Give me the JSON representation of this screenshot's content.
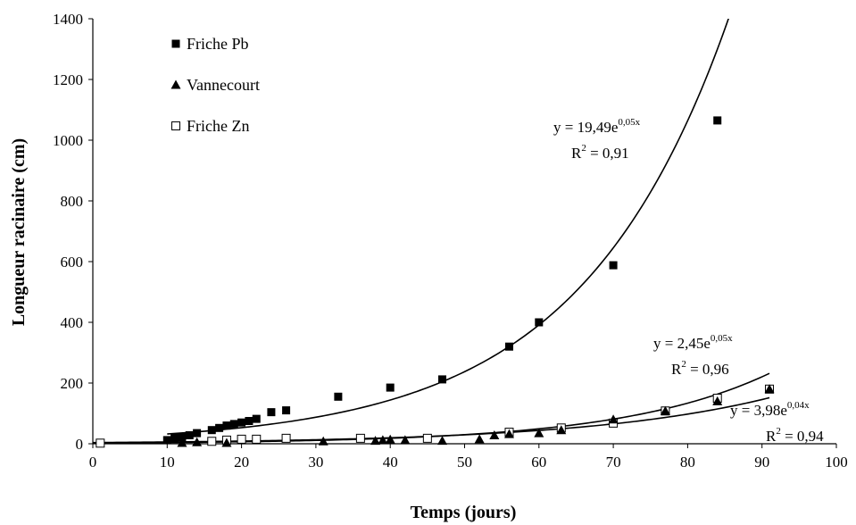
{
  "chart_data": {
    "type": "scatter",
    "title": "",
    "xlabel": "Temps (jours)",
    "ylabel": "Longueur racinaire (cm)",
    "xlim": [
      0,
      100
    ],
    "ylim": [
      0,
      1400
    ],
    "x_ticks": [
      "0",
      "10",
      "20",
      "30",
      "40",
      "50",
      "60",
      "70",
      "80",
      "90",
      "100"
    ],
    "y_ticks": [
      "0",
      "200",
      "400",
      "600",
      "800",
      "1000",
      "1200",
      "1400"
    ],
    "grid": false,
    "legend_position": "top-left",
    "series": [
      {
        "name": "Friche Pb",
        "marker": "filled-square",
        "color": "#000000",
        "points": [
          [
            10,
            12
          ],
          [
            11,
            20
          ],
          [
            12,
            22
          ],
          [
            13,
            28
          ],
          [
            14,
            35
          ],
          [
            16,
            45
          ],
          [
            17,
            52
          ],
          [
            18,
            60
          ],
          [
            19,
            65
          ],
          [
            20,
            70
          ],
          [
            21,
            75
          ],
          [
            22,
            82
          ],
          [
            24,
            104
          ],
          [
            26,
            110
          ],
          [
            33,
            155
          ],
          [
            40,
            185
          ],
          [
            47,
            212
          ],
          [
            56,
            320
          ],
          [
            60,
            400
          ],
          [
            70,
            588
          ],
          [
            84,
            1065
          ]
        ],
        "fit": {
          "a": 19.49,
          "b": 0.05,
          "x_range": [
            10,
            95
          ],
          "equation_base": "y = 19,49e",
          "equation_exp": "0,05x",
          "r2_prefix": "R",
          "r2_sup": "2",
          "r2_value": " = 0,91"
        }
      },
      {
        "name": "Vannecourt",
        "marker": "filled-triangle",
        "color": "#000000",
        "points": [
          [
            12,
            3
          ],
          [
            14,
            5
          ],
          [
            18,
            3
          ],
          [
            31,
            8
          ],
          [
            38,
            10
          ],
          [
            39,
            12
          ],
          [
            40,
            14
          ],
          [
            42,
            12
          ],
          [
            47,
            10
          ],
          [
            52,
            15
          ],
          [
            54,
            28
          ],
          [
            56,
            32
          ],
          [
            60,
            35
          ],
          [
            63,
            45
          ],
          [
            70,
            80
          ],
          [
            77,
            108
          ],
          [
            84,
            140
          ],
          [
            91,
            180
          ]
        ],
        "fit": {
          "a": 2.45,
          "b": 0.05,
          "x_range": [
            0,
            91
          ],
          "equation_base": "y = 2,45e",
          "equation_exp": "0,05x",
          "r2_prefix": "R",
          "r2_sup": "2",
          "r2_value": " = 0,96"
        }
      },
      {
        "name": "Friche Zn",
        "marker": "open-square",
        "color": "#000000",
        "points": [
          [
            1,
            2
          ],
          [
            16,
            8
          ],
          [
            18,
            12
          ],
          [
            20,
            15
          ],
          [
            22,
            15
          ],
          [
            26,
            18
          ],
          [
            36,
            18
          ],
          [
            45,
            18
          ],
          [
            56,
            38
          ],
          [
            63,
            52
          ],
          [
            70,
            68
          ],
          [
            77,
            108
          ],
          [
            84,
            150
          ],
          [
            91,
            180
          ]
        ],
        "fit": {
          "a": 3.98,
          "b": 0.04,
          "x_range": [
            0,
            91
          ],
          "equation_base": "y = 3,98e",
          "equation_exp": "0,04x",
          "r2_prefix": "R",
          "r2_sup": "2",
          "r2_value": " = 0,94"
        }
      }
    ]
  }
}
